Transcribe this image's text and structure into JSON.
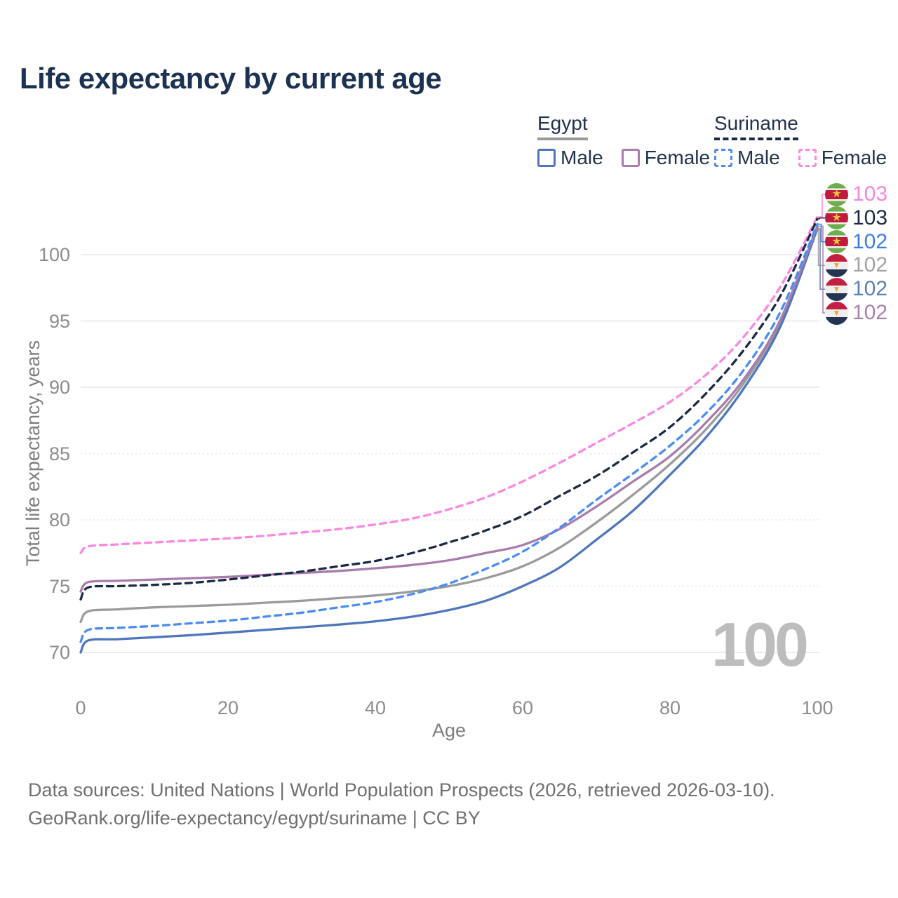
{
  "title": "Life expectancy by current age",
  "legend": {
    "groups": [
      {
        "name": "Egypt",
        "underline": {
          "style": "solid",
          "color": "#9a9a9a"
        },
        "items": [
          {
            "label": "Male",
            "color": "#4e77bb",
            "line_style": "solid"
          },
          {
            "label": "Female",
            "color": "#a87cac",
            "line_style": "solid"
          }
        ]
      },
      {
        "name": "Suriname",
        "underline": {
          "style": "dashed",
          "color": "#1b2a44"
        },
        "items": [
          {
            "label": "Male",
            "color": "#4b8cf1",
            "line_style": "dashed"
          },
          {
            "label": "Female",
            "color": "#fb87e0",
            "line_style": "dashed"
          }
        ]
      }
    ]
  },
  "axes": {
    "x": {
      "title": "Age",
      "ticks": [
        "0",
        "20",
        "40",
        "60",
        "80",
        "100"
      ]
    },
    "y": {
      "title": "Total life expectancy, years",
      "ticks": [
        "70",
        "75",
        "80",
        "85",
        "90",
        "95",
        "100"
      ]
    }
  },
  "watermark": "100",
  "end_labels": [
    {
      "value": "103",
      "flag": "suriname",
      "color": "#f986de"
    },
    {
      "value": "103",
      "flag": "suriname",
      "color": "#1b2a44"
    },
    {
      "value": "102",
      "flag": "suriname",
      "color": "#3d7de2"
    },
    {
      "value": "102",
      "flag": "egypt",
      "color": "#a4a4a4"
    },
    {
      "value": "102",
      "flag": "egypt",
      "color": "#5b7fb5"
    },
    {
      "value": "102",
      "flag": "egypt",
      "color": "#a881ad"
    }
  ],
  "footer": {
    "line1": "Data sources: United Nations | World Population Prospects (2026, retrieved 2026-03-10).",
    "line2": "GeoRank.org/life-expectancy/egypt/suriname | CC BY"
  },
  "chart_data": {
    "type": "line",
    "title": "Life expectancy by current age",
    "xlabel": "Age",
    "ylabel": "Total life expectancy, years",
    "xlim": [
      0,
      100
    ],
    "ylim": [
      70,
      103
    ],
    "grid": {
      "solid_ticks": [
        70,
        90,
        95,
        100
      ],
      "dotted_ticks": [
        75,
        80,
        85
      ]
    },
    "legend_position": "top-right",
    "x": [
      0,
      1,
      5,
      10,
      15,
      20,
      25,
      30,
      35,
      40,
      45,
      50,
      55,
      60,
      65,
      70,
      75,
      80,
      85,
      90,
      95,
      100
    ],
    "series": [
      {
        "name": "Egypt Total",
        "country": "Egypt",
        "sex": "Both",
        "color": "#9b9b9b",
        "dash": "solid",
        "end_label_row": 3,
        "values": [
          72.3,
          73.1,
          73.25,
          73.4,
          73.5,
          73.6,
          73.75,
          73.9,
          74.1,
          74.3,
          74.6,
          75.0,
          75.6,
          76.5,
          77.9,
          79.8,
          81.9,
          84.2,
          86.9,
          90.3,
          94.9,
          102.05
        ]
      },
      {
        "name": "Egypt Male",
        "country": "Egypt",
        "sex": "Male",
        "color": "#4e77bb",
        "dash": "solid",
        "end_label_row": 4,
        "values": [
          70.0,
          70.9,
          71.0,
          71.15,
          71.3,
          71.5,
          71.7,
          71.9,
          72.1,
          72.35,
          72.7,
          73.2,
          73.9,
          75.0,
          76.4,
          78.5,
          80.7,
          83.4,
          86.3,
          89.9,
          94.6,
          101.95
        ]
      },
      {
        "name": "Egypt Female",
        "country": "Egypt",
        "sex": "Female",
        "color": "#a87cac",
        "dash": "solid",
        "end_label_row": 5,
        "values": [
          74.6,
          75.3,
          75.4,
          75.5,
          75.6,
          75.7,
          75.85,
          76.0,
          76.15,
          76.35,
          76.6,
          76.95,
          77.5,
          78.1,
          79.3,
          81.0,
          82.9,
          84.8,
          87.4,
          90.6,
          95.1,
          102.15
        ]
      },
      {
        "name": "Suriname Female",
        "country": "Suriname",
        "sex": "Female",
        "color": "#fb87e0",
        "dash": "dashed",
        "end_label_row": 0,
        "values": [
          77.5,
          78.0,
          78.15,
          78.3,
          78.45,
          78.6,
          78.8,
          79.05,
          79.3,
          79.65,
          80.1,
          80.8,
          81.7,
          82.9,
          84.3,
          85.8,
          87.3,
          88.9,
          91.0,
          93.8,
          97.6,
          102.85
        ]
      },
      {
        "name": "Suriname Male",
        "country": "Suriname",
        "sex": "Male",
        "color": "#4b8cf1",
        "dash": "dashed",
        "end_label_row": 2,
        "values": [
          70.8,
          71.7,
          71.85,
          72.0,
          72.2,
          72.4,
          72.7,
          73.0,
          73.4,
          73.8,
          74.4,
          75.2,
          76.3,
          77.6,
          79.4,
          81.5,
          83.5,
          85.6,
          88.1,
          91.3,
          95.7,
          102.3
        ]
      },
      {
        "name": "Suriname Total",
        "country": "Suriname",
        "sex": "Both",
        "color": "#1b2a44",
        "dash": "dashed",
        "end_label_row": 1,
        "values": [
          74.0,
          74.9,
          75.0,
          75.1,
          75.25,
          75.5,
          75.8,
          76.1,
          76.5,
          76.9,
          77.5,
          78.3,
          79.2,
          80.3,
          81.8,
          83.3,
          85.1,
          87.0,
          89.6,
          92.8,
          96.9,
          102.7
        ]
      }
    ]
  }
}
